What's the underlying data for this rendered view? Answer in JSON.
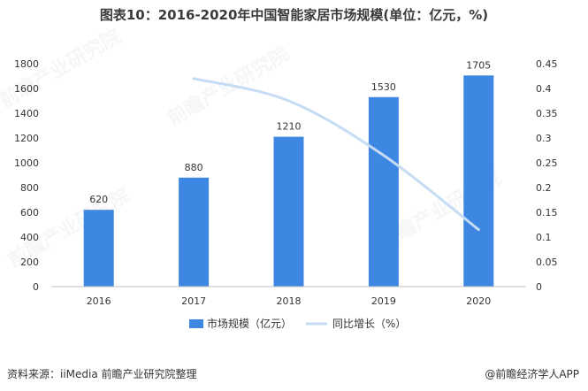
{
  "title": "图表10：2016-2020年中国智能家居市场规模(单位：亿元，%)",
  "chart_data": {
    "type": "bar+line",
    "categories": [
      "2016",
      "2017",
      "2018",
      "2019",
      "2020"
    ],
    "series": [
      {
        "name": "市场规模（亿元）",
        "type": "bar",
        "axis": "left",
        "values": [
          620,
          880,
          1210,
          1530,
          1705
        ],
        "color": "#3d86e2"
      },
      {
        "name": "同比增长（%）",
        "type": "line",
        "axis": "right",
        "values": [
          null,
          0.42,
          0.375,
          0.265,
          0.115
        ],
        "color": "#c6dcf5"
      }
    ],
    "data_labels": [
      "620",
      "880",
      "1210",
      "1530",
      "1705"
    ],
    "y_left": {
      "lim": [
        0,
        1800
      ],
      "ticks": [
        "0",
        "200",
        "400",
        "600",
        "800",
        "1000",
        "1200",
        "1400",
        "1600",
        "1800"
      ]
    },
    "y_right": {
      "lim": [
        0,
        0.45
      ],
      "ticks": [
        "0",
        "0.05",
        "0.1",
        "0.15",
        "0.2",
        "0.25",
        "0.3",
        "0.35",
        "0.4",
        "0.45"
      ]
    },
    "legend_position": "bottom"
  },
  "watermark": "前瞻产业研究院",
  "footer": {
    "source": "资料来源：iiMedia 前瞻产业研究院整理",
    "brand": "@前瞻经济学人APP"
  }
}
